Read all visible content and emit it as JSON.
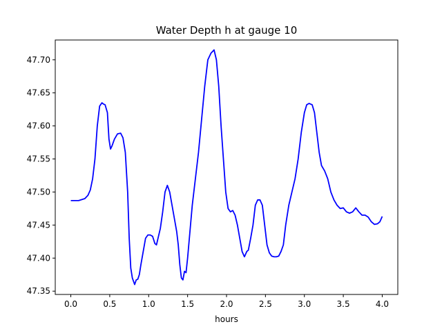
{
  "chart_data": {
    "type": "line",
    "title": "Water Depth h at gauge 10",
    "xlabel": "hours",
    "ylabel": "",
    "xlim": [
      -0.2,
      4.2
    ],
    "ylim": [
      47.345,
      47.73
    ],
    "grid": false,
    "x_ticks": [
      0.0,
      0.5,
      1.0,
      1.5,
      2.0,
      2.5,
      3.0,
      3.5,
      4.0
    ],
    "x_tick_labels": [
      "0.0",
      "0.5",
      "1.0",
      "1.5",
      "2.0",
      "2.5",
      "3.0",
      "3.5",
      "4.0"
    ],
    "y_ticks": [
      47.35,
      47.4,
      47.45,
      47.5,
      47.55,
      47.6,
      47.65,
      47.7
    ],
    "y_tick_labels": [
      "47.35",
      "47.40",
      "47.45",
      "47.50",
      "47.55",
      "47.60",
      "47.65",
      "47.70"
    ],
    "series": [
      {
        "color": "#0000ff",
        "x": [
          0.0,
          0.1,
          0.18,
          0.22,
          0.25,
          0.28,
          0.31,
          0.34,
          0.37,
          0.4,
          0.42,
          0.44,
          0.47,
          0.49,
          0.51,
          0.53,
          0.56,
          0.6,
          0.64,
          0.67,
          0.7,
          0.73,
          0.75,
          0.77,
          0.79,
          0.82,
          0.84,
          0.86,
          0.88,
          0.9,
          0.93,
          0.96,
          0.99,
          1.02,
          1.05,
          1.08,
          1.1,
          1.12,
          1.15,
          1.18,
          1.21,
          1.24,
          1.27,
          1.3,
          1.33,
          1.36,
          1.38,
          1.4,
          1.42,
          1.44,
          1.46,
          1.48,
          1.5,
          1.53,
          1.56,
          1.6,
          1.64,
          1.68,
          1.72,
          1.76,
          1.8,
          1.84,
          1.87,
          1.9,
          1.93,
          1.96,
          1.99,
          2.02,
          2.05,
          2.08,
          2.11,
          2.14,
          2.17,
          2.2,
          2.23,
          2.26,
          2.28,
          2.31,
          2.34,
          2.37,
          2.4,
          2.43,
          2.46,
          2.49,
          2.52,
          2.55,
          2.58,
          2.61,
          2.64,
          2.67,
          2.7,
          2.73,
          2.76,
          2.8,
          2.84,
          2.88,
          2.92,
          2.96,
          3.0,
          3.03,
          3.06,
          3.08,
          3.1,
          3.13,
          3.16,
          3.19,
          3.22,
          3.26,
          3.3,
          3.34,
          3.38,
          3.42,
          3.46,
          3.5,
          3.54,
          3.58,
          3.62,
          3.66,
          3.7,
          3.74,
          3.78,
          3.82,
          3.86,
          3.9,
          3.94,
          3.97,
          4.0
        ],
        "y": [
          47.487,
          47.487,
          47.49,
          47.495,
          47.503,
          47.52,
          47.55,
          47.6,
          47.63,
          47.635,
          47.633,
          47.632,
          47.62,
          47.58,
          47.565,
          47.57,
          47.58,
          47.588,
          47.589,
          47.582,
          47.56,
          47.5,
          47.43,
          47.385,
          47.37,
          47.36,
          47.367,
          47.368,
          47.375,
          47.39,
          47.41,
          47.43,
          47.435,
          47.435,
          47.433,
          47.422,
          47.42,
          47.43,
          47.445,
          47.47,
          47.5,
          47.51,
          47.5,
          47.48,
          47.46,
          47.44,
          47.42,
          47.39,
          47.37,
          47.367,
          47.38,
          47.378,
          47.4,
          47.44,
          47.48,
          47.52,
          47.56,
          47.61,
          47.66,
          47.7,
          47.71,
          47.715,
          47.7,
          47.66,
          47.6,
          47.55,
          47.5,
          47.475,
          47.47,
          47.472,
          47.465,
          47.45,
          47.43,
          47.41,
          47.402,
          47.41,
          47.412,
          47.43,
          47.45,
          47.48,
          47.488,
          47.488,
          47.48,
          47.45,
          47.42,
          47.408,
          47.403,
          47.402,
          47.402,
          47.403,
          47.41,
          47.42,
          47.45,
          47.48,
          47.5,
          47.52,
          47.55,
          47.59,
          47.62,
          47.632,
          47.634,
          47.633,
          47.632,
          47.62,
          47.59,
          47.56,
          47.54,
          47.532,
          47.52,
          47.5,
          47.488,
          47.48,
          47.475,
          47.476,
          47.47,
          47.468,
          47.47,
          47.476,
          47.47,
          47.465,
          47.465,
          47.462,
          47.455,
          47.451,
          47.452,
          47.455,
          47.463
        ]
      }
    ]
  }
}
